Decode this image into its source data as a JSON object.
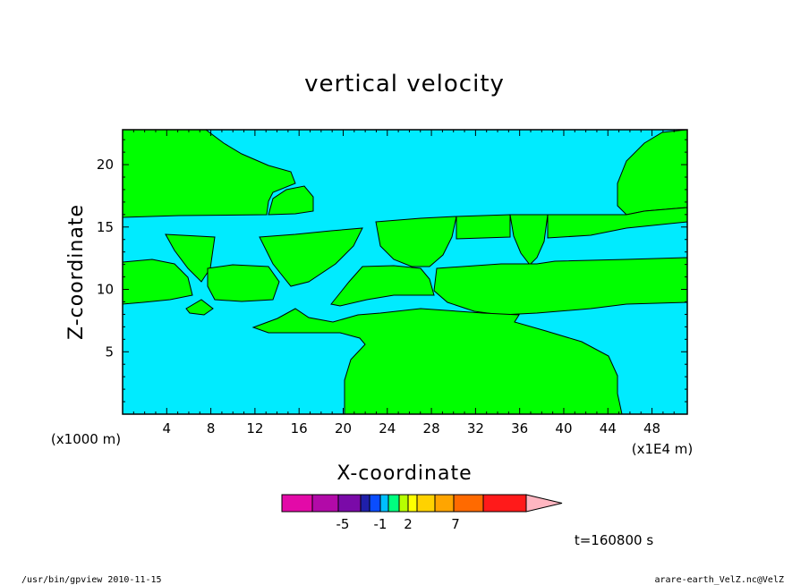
{
  "chart_data": {
    "type": "heatmap",
    "title": "vertical velocity",
    "xlabel": "X-coordinate",
    "ylabel": "Z-coordinate",
    "x_unit_left": "(x1000 m)",
    "x_unit_right": "(x1E4 m)",
    "x_ticks": [
      "4",
      "8",
      "12",
      "16",
      "20",
      "24",
      "28",
      "32",
      "36",
      "40",
      "44",
      "48"
    ],
    "y_ticks": [
      "5",
      "10",
      "15",
      "20"
    ],
    "xlim": [
      0,
      51.2
    ],
    "ylim": [
      0,
      22.8
    ],
    "colorbar": {
      "colors": [
        "#e30aa8",
        "#b20aa8",
        "#7a0aa8",
        "#1f1faa",
        "#0a4dff",
        "#00bfff",
        "#00ff7f",
        "#b7ff00",
        "#ffff00",
        "#ffd200",
        "#ffa500",
        "#ff6a00",
        "#ff1a1a",
        "#ff7777",
        "#ffb6c1"
      ],
      "labels": [
        "-5",
        "-1",
        "2",
        "7"
      ]
    },
    "time_label": "t=160800 s",
    "regions": [
      {
        "name": "negative",
        "color": "#00ebff"
      },
      {
        "name": "positive",
        "color": "#00ff00"
      }
    ]
  },
  "footer": {
    "left": "/usr/bin/gpview   2010-11-15",
    "right": "arare-earth_VelZ.nc@VelZ"
  }
}
